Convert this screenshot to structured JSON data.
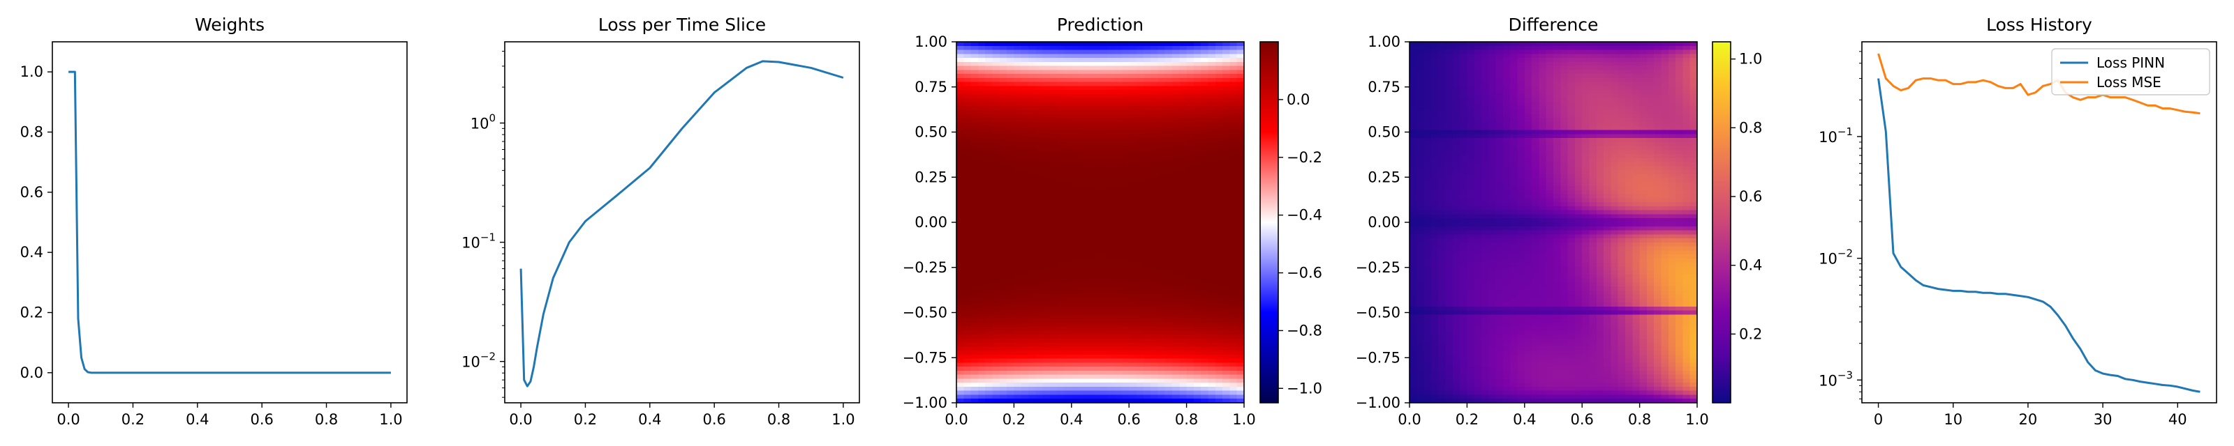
{
  "chart_data": [
    {
      "type": "line",
      "title": "Weights",
      "xlabel": "",
      "ylabel": "",
      "xlim": [
        -0.05,
        1.05
      ],
      "ylim": [
        -0.1,
        1.1
      ],
      "xticks": [
        0.0,
        0.2,
        0.4,
        0.6,
        0.8,
        1.0
      ],
      "xtick_labels": [
        "0.0",
        "0.2",
        "0.4",
        "0.6",
        "0.8",
        "1.0"
      ],
      "yticks": [
        0.0,
        0.2,
        0.4,
        0.6,
        0.8,
        1.0
      ],
      "ytick_labels": [
        "0.0",
        "0.2",
        "0.4",
        "0.6",
        "0.8",
        "1.0"
      ],
      "series": [
        {
          "name": "weights",
          "color": "#1f77b4",
          "x": [
            0.0,
            0.01,
            0.02,
            0.03,
            0.04,
            0.05,
            0.06,
            0.07,
            0.1,
            0.2,
            0.4,
            0.6,
            0.8,
            1.0
          ],
          "y": [
            1.0,
            1.0,
            1.0,
            0.18,
            0.05,
            0.012,
            0.002,
            0.0,
            0.0,
            0.0,
            0.0,
            0.0,
            0.0,
            0.0
          ]
        }
      ]
    },
    {
      "type": "line",
      "title": "Loss per Time Slice",
      "xlabel": "",
      "ylabel": "",
      "yscale": "log",
      "xlim": [
        -0.05,
        1.05
      ],
      "ylim": [
        0.0045,
        4.8
      ],
      "xticks": [
        0.0,
        0.2,
        0.4,
        0.6,
        0.8,
        1.0
      ],
      "xtick_labels": [
        "0.0",
        "0.2",
        "0.4",
        "0.6",
        "0.8",
        "1.0"
      ],
      "yticks": [
        0.01,
        0.1,
        1
      ],
      "ytick_labels": [
        {
          "base": "10",
          "exp": "−2"
        },
        {
          "base": "10",
          "exp": "−1"
        },
        {
          "base": "10",
          "exp": "0"
        }
      ],
      "series": [
        {
          "name": "loss",
          "color": "#1f77b4",
          "x": [
            0.0,
            0.01,
            0.02,
            0.03,
            0.04,
            0.05,
            0.07,
            0.1,
            0.15,
            0.2,
            0.3,
            0.4,
            0.5,
            0.6,
            0.7,
            0.75,
            0.8,
            0.9,
            1.0
          ],
          "y": [
            0.06,
            0.007,
            0.0062,
            0.0068,
            0.009,
            0.013,
            0.025,
            0.05,
            0.1,
            0.15,
            0.25,
            0.42,
            0.9,
            1.8,
            2.9,
            3.3,
            3.25,
            2.9,
            2.4
          ]
        }
      ]
    },
    {
      "type": "heatmap",
      "title": "Prediction",
      "colormap": "seismic",
      "xlim": [
        0.0,
        1.0
      ],
      "ylim": [
        -1.0,
        1.0
      ],
      "xticks": [
        0.0,
        0.2,
        0.4,
        0.6,
        0.8,
        1.0
      ],
      "xtick_labels": [
        "0.0",
        "0.2",
        "0.4",
        "0.6",
        "0.8",
        "1.0"
      ],
      "yticks": [
        -1.0,
        -0.75,
        -0.5,
        -0.25,
        0.0,
        0.25,
        0.5,
        0.75,
        1.0
      ],
      "ytick_labels": [
        "−1.00",
        "−0.75",
        "−0.50",
        "−0.25",
        "0.00",
        "0.25",
        "0.50",
        "0.75",
        "1.00"
      ],
      "color_range": [
        -1.05,
        0.2
      ],
      "colorbar_ticks": [
        0.0,
        -0.2,
        -0.4,
        -0.6,
        -0.8,
        -1.0
      ],
      "colorbar_tick_labels": [
        "0.0",
        "−0.2",
        "−0.4",
        "−0.6",
        "−0.8",
        "−1.0"
      ]
    },
    {
      "type": "heatmap",
      "title": "Difference",
      "colormap": "plasma",
      "xlim": [
        0.0,
        1.0
      ],
      "ylim": [
        -1.0,
        1.0
      ],
      "xticks": [
        0.0,
        0.2,
        0.4,
        0.6,
        0.8,
        1.0
      ],
      "xtick_labels": [
        "0.0",
        "0.2",
        "0.4",
        "0.6",
        "0.8",
        "1.0"
      ],
      "yticks": [
        -1.0,
        -0.75,
        -0.5,
        -0.25,
        0.0,
        0.25,
        0.5,
        0.75,
        1.0
      ],
      "ytick_labels": [
        "−1.00",
        "−0.75",
        "−0.50",
        "−0.25",
        "0.00",
        "0.25",
        "0.50",
        "0.75",
        "1.00"
      ],
      "color_range": [
        0.0,
        1.05
      ],
      "colorbar_ticks": [
        0.2,
        0.4,
        0.6,
        0.8,
        1.0
      ],
      "colorbar_tick_labels": [
        "0.2",
        "0.4",
        "0.6",
        "0.8",
        "1.0"
      ]
    },
    {
      "type": "line",
      "title": "Loss History",
      "xlabel": "",
      "ylabel": "",
      "yscale": "log",
      "xlim": [
        -2.2,
        45.2
      ],
      "ylim": [
        0.00065,
        0.6
      ],
      "xticks": [
        0,
        10,
        20,
        30,
        40
      ],
      "xtick_labels": [
        "0",
        "10",
        "20",
        "30",
        "40"
      ],
      "yticks": [
        0.001,
        0.01,
        0.1
      ],
      "ytick_labels": [
        {
          "base": "10",
          "exp": "−3"
        },
        {
          "base": "10",
          "exp": "−2"
        },
        {
          "base": "10",
          "exp": "−1"
        }
      ],
      "legend": {
        "position": "top-right",
        "labels": [
          "Loss PINN",
          "Loss MSE"
        ]
      },
      "series": [
        {
          "name": "Loss PINN",
          "color": "#1f77b4",
          "x": [
            0,
            1,
            2,
            3,
            4,
            5,
            6,
            7,
            8,
            9,
            10,
            11,
            12,
            13,
            14,
            15,
            16,
            17,
            18,
            19,
            20,
            21,
            22,
            23,
            24,
            25,
            26,
            27,
            28,
            29,
            30,
            31,
            32,
            33,
            34,
            35,
            36,
            37,
            38,
            39,
            40,
            41,
            42,
            43
          ],
          "y": [
            0.3,
            0.11,
            0.011,
            0.0085,
            0.0075,
            0.0066,
            0.006,
            0.0058,
            0.0056,
            0.0055,
            0.0054,
            0.0054,
            0.0053,
            0.0053,
            0.0052,
            0.0052,
            0.0051,
            0.0051,
            0.005,
            0.0049,
            0.0048,
            0.0046,
            0.0044,
            0.004,
            0.0034,
            0.0028,
            0.0022,
            0.0018,
            0.0014,
            0.0012,
            0.00113,
            0.0011,
            0.00108,
            0.00102,
            0.001,
            0.00097,
            0.00095,
            0.00093,
            0.00091,
            0.0009,
            0.00088,
            0.00085,
            0.00082,
            0.0008
          ]
        },
        {
          "name": "Loss MSE",
          "color": "#ff7f0e",
          "x": [
            0,
            1,
            2,
            3,
            4,
            5,
            6,
            7,
            8,
            9,
            10,
            11,
            12,
            13,
            14,
            15,
            16,
            17,
            18,
            19,
            20,
            21,
            22,
            23,
            24,
            25,
            26,
            27,
            28,
            29,
            30,
            31,
            32,
            33,
            34,
            35,
            36,
            37,
            38,
            39,
            40,
            41,
            42,
            43
          ],
          "y": [
            0.48,
            0.3,
            0.26,
            0.24,
            0.25,
            0.29,
            0.3,
            0.3,
            0.29,
            0.29,
            0.27,
            0.27,
            0.28,
            0.28,
            0.29,
            0.28,
            0.26,
            0.25,
            0.25,
            0.27,
            0.22,
            0.23,
            0.26,
            0.27,
            0.29,
            0.23,
            0.21,
            0.2,
            0.21,
            0.21,
            0.22,
            0.21,
            0.21,
            0.21,
            0.2,
            0.19,
            0.18,
            0.18,
            0.17,
            0.17,
            0.165,
            0.16,
            0.158,
            0.155
          ]
        }
      ]
    }
  ]
}
